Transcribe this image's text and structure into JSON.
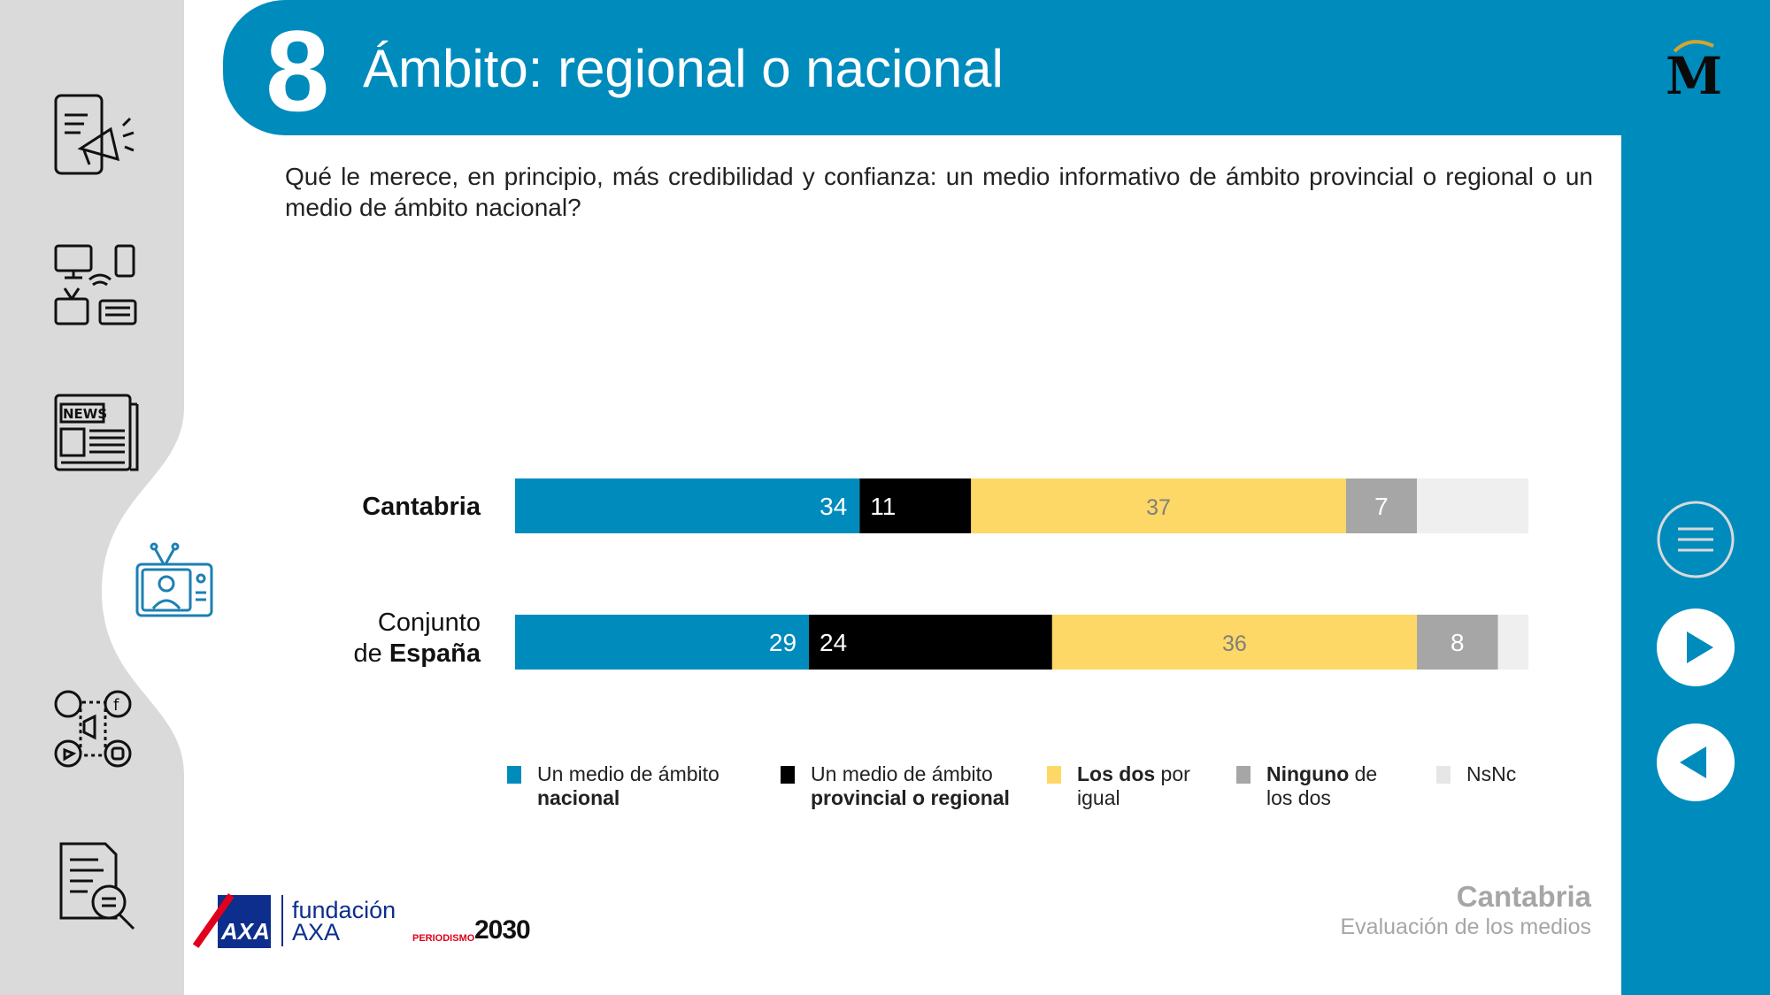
{
  "header": {
    "number": "8",
    "title": "Ámbito: regional o nacional"
  },
  "question": "Qué le merece, en principio, más credibilidad y confianza: un medio informativo de ámbito provincial o regional o un medio de ámbito nacional?",
  "nav_icons": [
    "mobile-megaphone-icon",
    "devices-icon",
    "newspaper-icon",
    "tv-presenter-icon",
    "social-media-icon",
    "document-search-icon"
  ],
  "controls": [
    "menu-icon",
    "play-forward-icon",
    "play-back-icon"
  ],
  "colors": {
    "blue": "#008bbd",
    "black": "#000000",
    "yellow": "#fdd866",
    "gray": "#a6a6a6",
    "light": "#efefef",
    "rail": "#dadada"
  },
  "chart_data": {
    "type": "bar",
    "orientation": "horizontal",
    "stacked": true,
    "categories": [
      "Cantabria",
      "Conjunto de España"
    ],
    "category_labels": [
      {
        "plain": "",
        "bold": "Cantabria"
      },
      {
        "plain": "Conjunto",
        "plain2": "de",
        "bold": "España"
      }
    ],
    "series": [
      {
        "name": "Un medio de ámbito nacional",
        "values": [
          34,
          29
        ],
        "color": "#008bbd",
        "label_color": "#ffffff"
      },
      {
        "name": "Un medio de ámbito provincial o regional",
        "values": [
          11,
          24
        ],
        "color": "#000000",
        "label_color": "#ffffff"
      },
      {
        "name": "Los dos por igual",
        "values": [
          37,
          36
        ],
        "color": "#fdd866",
        "label_color": "#7f7f7f"
      },
      {
        "name": "Ninguno de los dos",
        "values": [
          7,
          8
        ],
        "color": "#a6a6a6",
        "label_color": "#ffffff"
      },
      {
        "name": "NsNc",
        "values": [
          11,
          3
        ],
        "color": "#efefef",
        "label_color": "#efefef",
        "hide_label": true
      }
    ],
    "legend": [
      {
        "plain1": "Un medio de ámbito",
        "bold": "nacional",
        "plain2": ""
      },
      {
        "plain1": "Un medio de ámbito",
        "bold": "provincial o regional",
        "plain2": ""
      },
      {
        "bold": "Los dos",
        "plain1": "por",
        "plain2": "igual"
      },
      {
        "bold": "Ninguno",
        "plain1": "de",
        "plain2": "los dos"
      },
      {
        "plain1": "NsNc",
        "bold": "",
        "plain2": ""
      }
    ],
    "xlim": [
      0,
      100
    ],
    "legend_position": "bottom"
  },
  "footer": {
    "region": "Cantabria",
    "subtitle": "Evaluación de los medios"
  },
  "sponsor": {
    "brand": "AXA",
    "name_line1": "fundación",
    "name_line2": "AXA",
    "periodismo": "PERIODISMO",
    "year": "2030"
  }
}
